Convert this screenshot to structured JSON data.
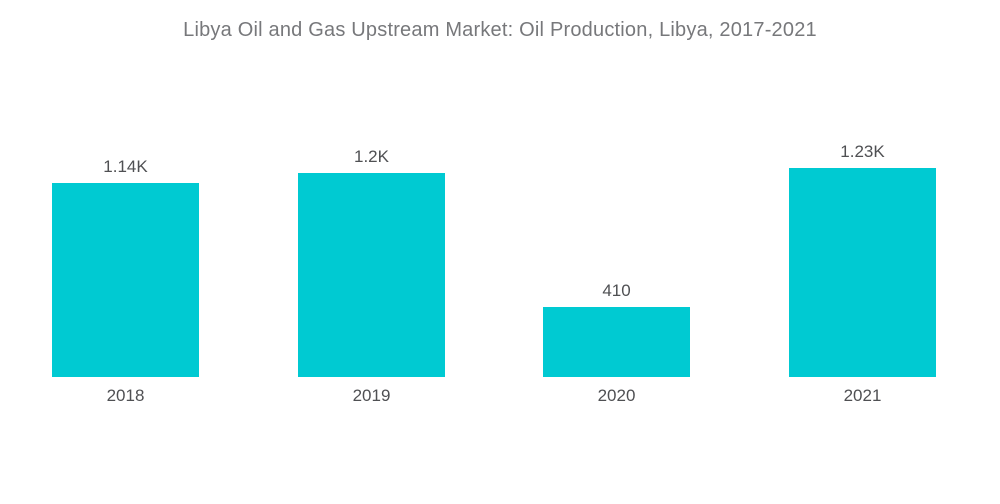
{
  "page": {
    "background_color": "#ffffff"
  },
  "chart_data": {
    "type": "bar",
    "title": "Libya Oil and Gas Upstream Market: Oil Production, Libya, 2017-2021",
    "categories": [
      "2018",
      "2019",
      "2020",
      "2021"
    ],
    "values": [
      1140,
      1200,
      410,
      1230
    ],
    "value_labels": [
      "1.14K",
      "1.2K",
      "410",
      "1.23K"
    ],
    "xlabel": "",
    "ylabel": "",
    "ylim": [
      0,
      1230
    ],
    "grid": false,
    "legend": false,
    "axes_visible": false,
    "bar_color": "#00cad2",
    "title_color": "#77787b",
    "label_color": "#4f5053"
  }
}
